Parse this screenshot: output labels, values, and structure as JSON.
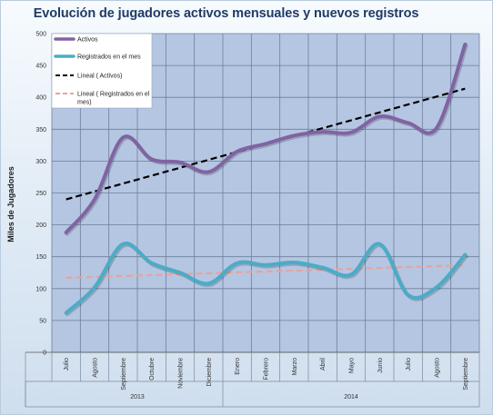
{
  "chart_data": {
    "type": "line",
    "title": "Evolución de jugadores activos mensuales y nuevos registros",
    "ylabel": "Miles de Jugadores",
    "ylim": [
      0,
      500
    ],
    "yticks": [
      0,
      50,
      100,
      150,
      200,
      250,
      300,
      350,
      400,
      450,
      500
    ],
    "grid": true,
    "legend_position": "top-left",
    "categories": [
      "Julio",
      "Agosto",
      "Septiembre",
      "Octubre",
      "Noviembre",
      "Diciembre",
      "Enero",
      "Febrero",
      "Marzo",
      "Abril",
      "Mayo",
      "Junio",
      "Julio",
      "Agosto",
      "Septiembre"
    ],
    "year_groups": [
      {
        "label": "2013",
        "count": 6
      },
      {
        "label": "2014",
        "count": 9
      }
    ],
    "series": [
      {
        "name": "Activos",
        "color": "#8064a2",
        "style": "solid",
        "values": [
          188,
          240,
          337,
          303,
          298,
          283,
          315,
          327,
          340,
          346,
          345,
          370,
          360,
          352,
          483
        ]
      },
      {
        "name": "Registrados en el mes",
        "color": "#4bacc6",
        "style": "solid",
        "values": [
          62,
          102,
          170,
          140,
          125,
          108,
          140,
          137,
          141,
          133,
          122,
          170,
          90,
          102,
          153
        ]
      },
      {
        "name": "Lineal ( Activos)",
        "color": "#000000",
        "style": "dashed",
        "values": [
          240,
          252.4,
          264.8,
          277.2,
          289.6,
          302,
          314.4,
          326.8,
          339.2,
          351.6,
          364,
          376.4,
          388.8,
          401.2,
          413.6
        ]
      },
      {
        "name": "Lineal ( Registrados en el mes)",
        "color": "#e6a49c",
        "style": "dashed",
        "values": [
          117,
          118.4,
          119.8,
          121.2,
          122.6,
          124,
          125.4,
          126.8,
          128.2,
          129.6,
          131,
          132.4,
          133.8,
          135.2,
          136.6
        ]
      }
    ]
  }
}
